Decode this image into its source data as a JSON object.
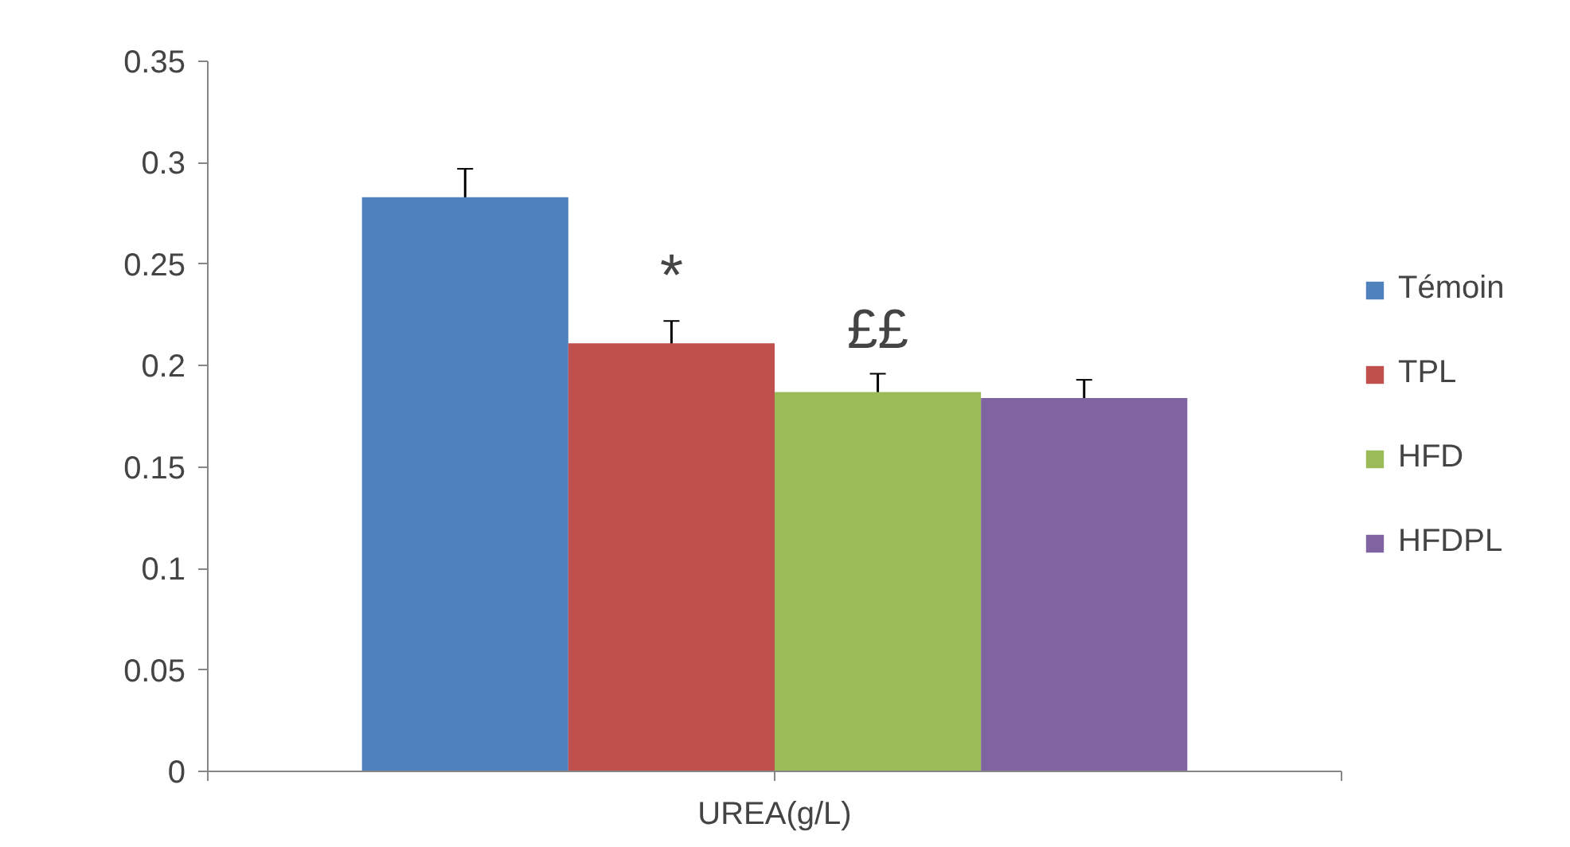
{
  "chart_data": {
    "type": "bar",
    "categories": [
      "UREA(g/L)"
    ],
    "series": [
      {
        "name": "Témoin",
        "color": "#4f81bd",
        "values": [
          0.283
        ],
        "errors": [
          0.014
        ]
      },
      {
        "name": "TPL",
        "color": "#c0504d",
        "values": [
          0.211
        ],
        "errors": [
          0.011
        ]
      },
      {
        "name": "HFD",
        "color": "#9bbb59",
        "values": [
          0.187
        ],
        "errors": [
          0.009
        ]
      },
      {
        "name": "HFDPL",
        "color": "#8064a2",
        "values": [
          0.184
        ],
        "errors": [
          0.009
        ]
      }
    ],
    "annotations": [
      "*",
      "££"
    ],
    "ylim": [
      0,
      0.35
    ],
    "yticks": [
      {
        "value": 0,
        "label": "0"
      },
      0.05,
      0.1,
      0.15,
      0.2,
      0.25,
      0.3,
      0.35
    ],
    "grid": false,
    "legend": "right"
  }
}
